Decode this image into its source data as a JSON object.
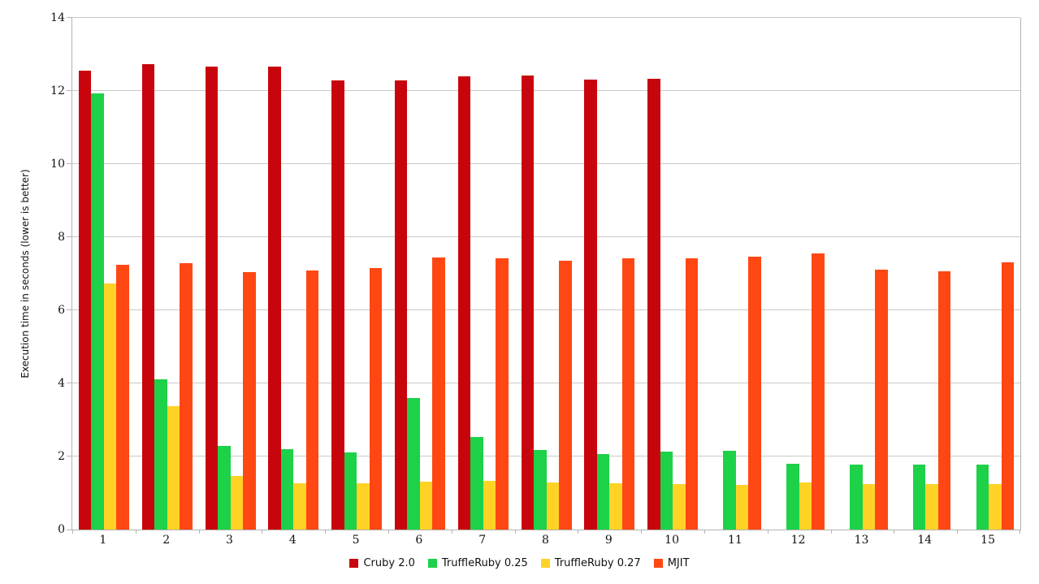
{
  "chart_data": {
    "type": "bar",
    "categories": [
      "1",
      "2",
      "3",
      "4",
      "5",
      "6",
      "7",
      "8",
      "9",
      "10",
      "11",
      "12",
      "13",
      "14",
      "15"
    ],
    "series": [
      {
        "name": "Cruby 2.0",
        "color": "#c8050c",
        "values": [
          12.55,
          12.73,
          12.67,
          12.67,
          12.28,
          12.28,
          12.41,
          12.43,
          12.32,
          12.33,
          null,
          null,
          null,
          null,
          null
        ]
      },
      {
        "name": "TruffleRuby 0.25",
        "color": "#1dd149",
        "values": [
          11.93,
          4.12,
          2.3,
          2.19,
          2.12,
          3.6,
          2.53,
          2.17,
          2.07,
          2.13,
          2.15,
          1.8,
          1.78,
          1.78,
          1.78
        ]
      },
      {
        "name": "TruffleRuby 0.27",
        "color": "#ffd226",
        "values": [
          6.74,
          3.38,
          1.47,
          1.26,
          1.26,
          1.32,
          1.34,
          1.3,
          1.26,
          1.24,
          1.22,
          1.28,
          1.24,
          1.24,
          1.25
        ]
      },
      {
        "name": "MJIT",
        "color": "#ff4713",
        "values": [
          7.24,
          7.29,
          7.04,
          7.09,
          7.16,
          7.44,
          7.42,
          7.36,
          7.42,
          7.43,
          7.47,
          7.56,
          7.11,
          7.07,
          7.31
        ]
      }
    ],
    "xlabel": "",
    "ylabel": "Execution time in seconds (lower is better)",
    "ylim": [
      0,
      14
    ],
    "y_ticks": [
      0,
      2,
      4,
      6,
      8,
      10,
      12,
      14
    ],
    "grid": "horizontal",
    "legend_position": "bottom",
    "axis_color": "#b3b3b3",
    "gridline_color": "#c9c9c9"
  }
}
